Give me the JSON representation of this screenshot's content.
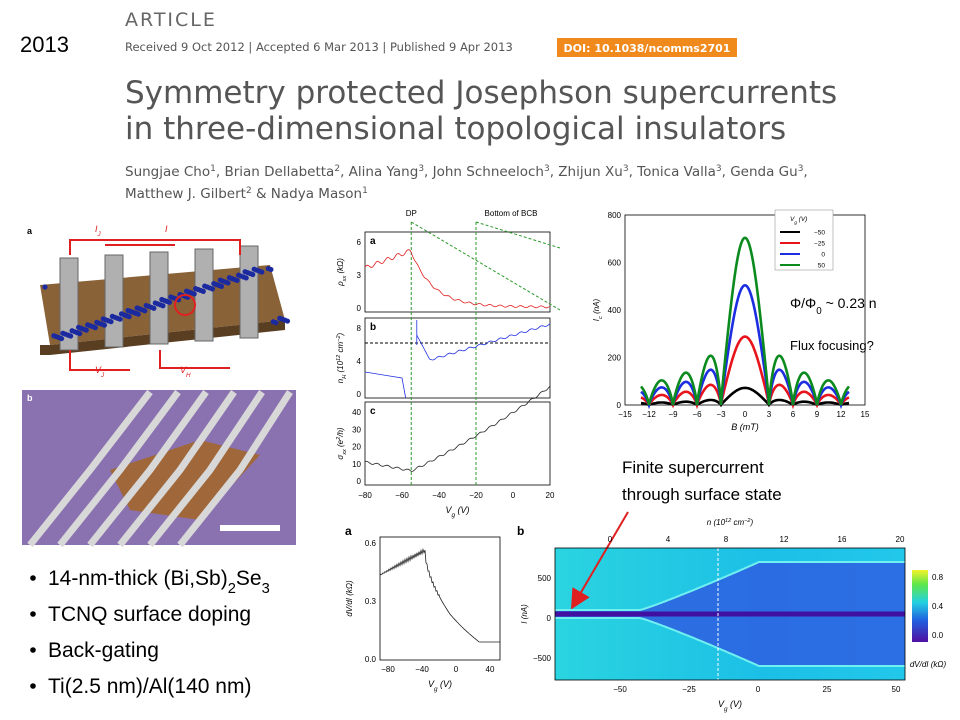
{
  "year": "2013",
  "paper": {
    "journal_label": "ARTICLE",
    "dates": "Received 9 Oct 2012 | Accepted 6 Mar 2013 | Published 9 Apr 2013",
    "doi": "DOI: 10.1038/ncomms2701",
    "title": [
      "Symmetry protected Josephson supercurrents",
      "in three-dimensional topological insulators"
    ],
    "authors": [
      [
        {
          "name": "Sungjae Cho",
          "sup": "1"
        },
        {
          "name": ", Brian Dellabetta",
          "sup": "2"
        },
        {
          "name": ", Alina Yang",
          "sup": "3"
        },
        {
          "name": ", John Schneeloch",
          "sup": "3"
        },
        {
          "name": ", Zhijun Xu",
          "sup": "3"
        },
        {
          "name": ", Tonica Valla",
          "sup": "3"
        },
        {
          "name": ", Genda Gu",
          "sup": "3"
        },
        {
          "name": ","
        }
      ],
      [
        {
          "name": "Matthew J. Gilbert",
          "sup": "2"
        },
        {
          "name": " & Nadya Mason",
          "sup": "1"
        }
      ]
    ]
  },
  "fig_device": {
    "panel_a": "a",
    "panel_b": "b",
    "labels": [
      [
        {
          "t": "I"
        },
        {
          "sub": "J"
        }
      ],
      [
        {
          "t": "I"
        }
      ],
      [
        {
          "t": "V"
        },
        {
          "sub": "J"
        }
      ],
      [
        {
          "t": "V"
        },
        {
          "sub": "H"
        }
      ]
    ]
  },
  "fig_transport": {
    "top_labels": [
      "DP",
      "Bottom of BCB"
    ],
    "panels": [
      "a",
      "b",
      "c"
    ],
    "yticks": [
      [
        "6",
        "3",
        "0"
      ],
      [
        "8",
        "4",
        "0"
      ],
      [
        "40",
        "30",
        "20",
        "10",
        "0"
      ]
    ],
    "ylabels": [
      [
        {
          "t": "ρ"
        },
        {
          "sub": "xx"
        },
        {
          "t": " (kΩ)"
        }
      ],
      [
        {
          "t": "n"
        },
        {
          "sub": "H"
        },
        {
          "t": " (10"
        },
        {
          "sup": "12"
        },
        {
          "t": " cm"
        },
        {
          "sup": "−2"
        },
        {
          "t": ")"
        }
      ],
      [
        {
          "t": "σ"
        },
        {
          "sub": "xx"
        },
        {
          "t": " (e"
        },
        {
          "sup": "2"
        },
        {
          "t": "/h)"
        }
      ]
    ],
    "xticks": [
      "−80",
      "−60",
      "−40",
      "−20",
      "0",
      "20"
    ],
    "xlabel": [
      {
        "t": "V"
      },
      {
        "sub": "g"
      },
      {
        "t": " (V)"
      }
    ]
  },
  "fig_critical": {
    "yticks": [
      "800",
      "600",
      "400",
      "200",
      "0"
    ],
    "xticks": [
      "−15",
      "−12",
      "−9",
      "−6",
      "−3",
      "0",
      "3",
      "6",
      "9",
      "12",
      "15"
    ],
    "ylabel": [
      {
        "t": "I"
      },
      {
        "sub": "c"
      },
      {
        "t": " (nA)"
      }
    ],
    "xlabel": [
      {
        "t": "B"
      },
      {
        "t": " (mT)"
      }
    ],
    "legend_title": [
      {
        "t": "V"
      },
      {
        "sub": "g"
      },
      {
        "t": " (V)"
      }
    ],
    "legend": [
      {
        "name": "−50",
        "color": "#000000"
      },
      {
        "name": "−25",
        "color": "#e8141b"
      },
      {
        "name": "0",
        "color": "#1c2ee0"
      },
      {
        "name": "50",
        "color": "#0b8a1e"
      }
    ]
  },
  "fig_resistance": {
    "panel": "a",
    "yticks": [
      "0.6",
      "0.3",
      "0.0"
    ],
    "xticks": [
      "−80",
      "−40",
      "0",
      "40"
    ],
    "ylabel": [
      {
        "t": "dV/dI (kΩ)"
      }
    ],
    "xlabel": [
      {
        "t": "V"
      },
      {
        "sub": "g"
      },
      {
        "t": " (V)"
      }
    ]
  },
  "fig_map": {
    "panel": "b",
    "top_label": [
      {
        "t": "n (10"
      },
      {
        "sup": "12"
      },
      {
        "t": " cm"
      },
      {
        "sup": "−2"
      },
      {
        "t": ")"
      }
    ],
    "top_ticks": [
      "0",
      "4",
      "8",
      "12",
      "16",
      "20"
    ],
    "yticks": [
      "500",
      "0",
      "−500"
    ],
    "ylabel": [
      {
        "t": "I (nA)"
      }
    ],
    "xticks": [
      "−50",
      "−25",
      "0",
      "25",
      "50"
    ],
    "xlabel": [
      {
        "t": "V"
      },
      {
        "sub": "g"
      },
      {
        "t": " (V)"
      }
    ],
    "colorbar_ticks": [
      "0.8",
      "0.4",
      "0.0"
    ],
    "colorbar_label": [
      {
        "t": "dV/dI (kΩ)"
      }
    ]
  },
  "annotations": {
    "flux": [
      {
        "t": "Φ/Φ"
      },
      {
        "sub": "0"
      },
      {
        "t": " ~ 0.23 n"
      }
    ],
    "flux_question": "Flux focusing?",
    "finite": [
      "Finite supercurrent",
      "through surface state"
    ]
  },
  "bullets": [
    [
      {
        "t": "14-nm-thick (Bi,Sb)"
      },
      {
        "sub": "2"
      },
      {
        "t": "Se"
      },
      {
        "sub": "3"
      }
    ],
    [
      {
        "t": "TCNQ surface doping"
      }
    ],
    [
      {
        "t": "Back-gating"
      }
    ],
    [
      {
        "t": "Ti(2.5 nm)/Al(140 nm)"
      }
    ]
  ]
}
